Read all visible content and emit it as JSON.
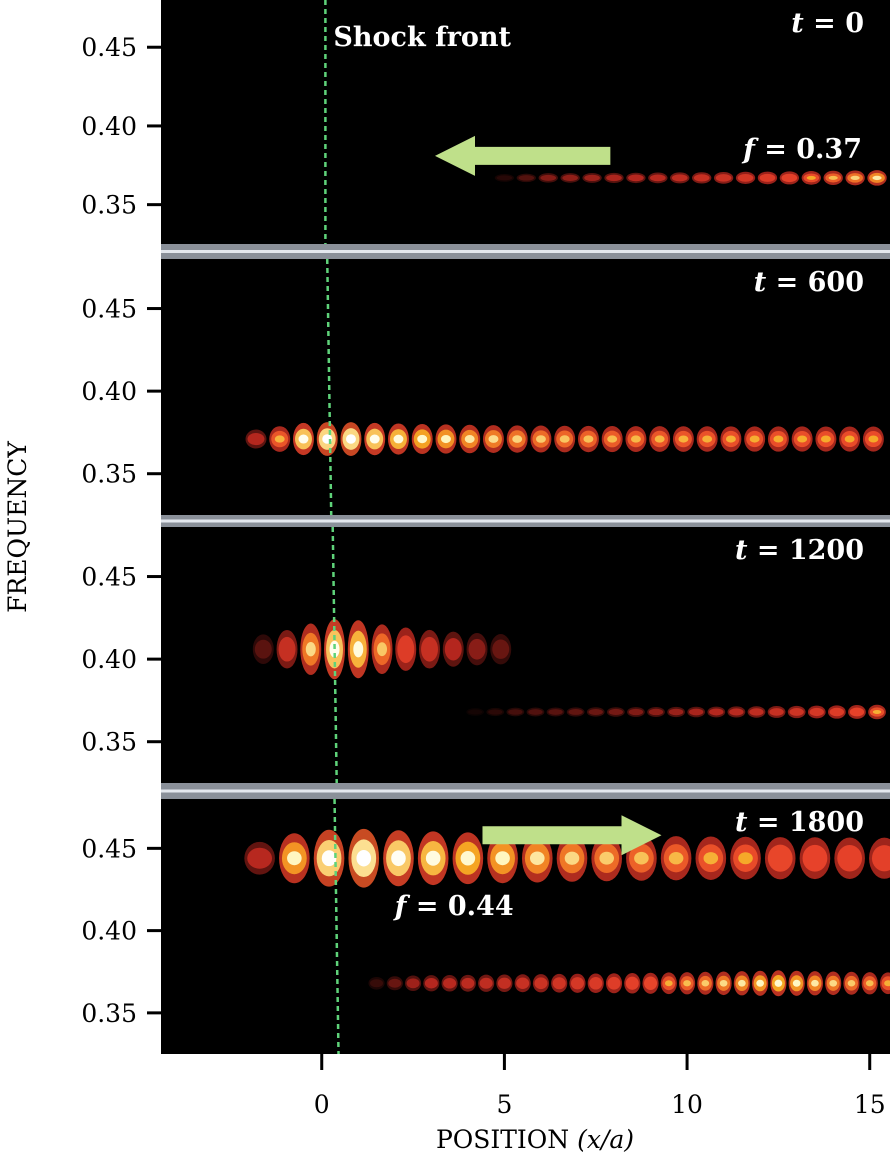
{
  "figure": {
    "ylabel": "FREQUENCY",
    "xlabel_main": "POSITION ",
    "xlabel_italic": "(x/a)",
    "shock_label": "Shock front"
  },
  "chart_data": {
    "type": "heatmap",
    "xlabel": "POSITION (x/a)",
    "ylabel": "FREQUENCY",
    "xlim": [
      -4.4,
      15.5
    ],
    "ylim": [
      0.325,
      0.48
    ],
    "xticks": [
      {
        "value": 0,
        "label": "0"
      },
      {
        "value": 5,
        "label": "5"
      },
      {
        "value": 10,
        "label": "10"
      },
      {
        "value": 15,
        "label": "15"
      }
    ],
    "yticks": [
      {
        "value": 0.35,
        "label": "0.35"
      },
      {
        "value": 0.4,
        "label": "0.40"
      },
      {
        "value": 0.45,
        "label": "0.45"
      }
    ],
    "colormap": [
      "#000000",
      "#b3261e",
      "#e8422a",
      "#f5a623",
      "#fff7c0",
      "#ffffff"
    ],
    "accent_colors": {
      "shock_line": "#5fd37a",
      "arrow": "#bfe08a"
    },
    "panels": [
      {
        "time_prefix": "t",
        "time_value": " = 0",
        "shock_x": 0.1,
        "freq_annotation": {
          "prefix": "f",
          "value": " = 0.37",
          "place": "right"
        },
        "arrow": {
          "direction": "left",
          "x_from": 7.9,
          "x_to": 3.1,
          "freq": 0.381
        },
        "bands": [
          {
            "freq": 0.367,
            "x_start": 5.0,
            "x_end": 15.5,
            "peak_x": 15.5,
            "peak": 0.75,
            "decay": 7.0,
            "spacing": 0.6,
            "width": 0.004
          }
        ]
      },
      {
        "time_prefix": "t",
        "time_value": " = 600",
        "shock_x": 0.15,
        "bands": [
          {
            "freq": 0.371,
            "x_start": -1.8,
            "x_end": 15.5,
            "peak_x": 0.5,
            "peak": 1.0,
            "decay": 3.5,
            "spacing": 0.65,
            "width": 0.007,
            "floor": 0.55
          }
        ]
      },
      {
        "time_prefix": "t",
        "time_value": " = 1200",
        "shock_x": 0.3,
        "freq_annotation": null,
        "bands": [
          {
            "freq": 0.406,
            "x_start": -1.6,
            "x_end": 5.5,
            "peak_x": 0.6,
            "peak": 1.0,
            "decay": 2.3,
            "spacing": 0.65,
            "width": 0.013
          },
          {
            "freq": 0.368,
            "x_start": 4.2,
            "x_end": 15.5,
            "peak_x": 15.5,
            "peak": 0.6,
            "decay": 6.0,
            "spacing": 0.55,
            "width": 0.004
          }
        ]
      },
      {
        "time_prefix": "t",
        "time_value": " = 1800",
        "shock_x": 0.35,
        "freq_annotation": {
          "prefix": "f",
          "value": " = 0.44",
          "place": "below"
        },
        "arrow": {
          "direction": "right",
          "x_from": 4.4,
          "x_to": 9.3,
          "freq": 0.458
        },
        "bands": [
          {
            "freq": 0.444,
            "x_start": -1.7,
            "x_end": 15.5,
            "peak_x": 1.0,
            "peak": 1.0,
            "decay": 6.5,
            "spacing": 0.95,
            "width": 0.012,
            "floor": 0.45
          },
          {
            "freq": 0.368,
            "x_start": 1.5,
            "x_end": 15.5,
            "peak_x": 12.5,
            "peak": 0.8,
            "decay": 9.0,
            "spacing": 0.5,
            "width": 0.006
          }
        ]
      }
    ]
  }
}
